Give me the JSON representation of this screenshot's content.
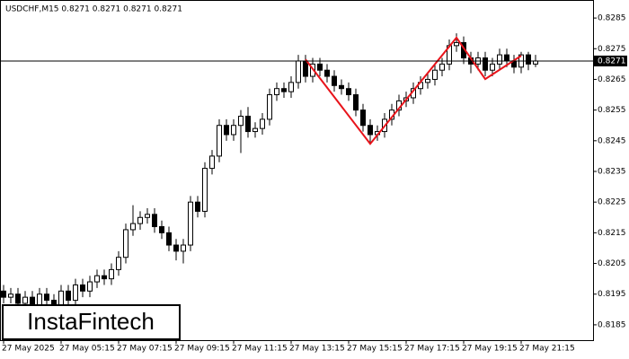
{
  "chart_data": {
    "type": "candlestick",
    "title": "USDCHF,M15  0.8271 0.8271 0.8271 0.8271",
    "watermark": "InstaFintech",
    "categories": [
      "27 May 2025",
      null,
      null,
      null,
      null,
      null,
      null,
      null,
      "27 May 05:15",
      null,
      null,
      null,
      null,
      null,
      null,
      null,
      "27 May 07:15",
      null,
      null,
      null,
      null,
      null,
      null,
      null,
      "27 May 09:15",
      null,
      null,
      null,
      null,
      null,
      null,
      null,
      "27 May 11:15",
      null,
      null,
      null,
      null,
      null,
      null,
      null,
      "27 May 13:15",
      null,
      null,
      null,
      null,
      null,
      null,
      null,
      "27 May 15:15",
      null,
      null,
      null,
      null,
      null,
      null,
      null,
      "27 May 17:15",
      null,
      null,
      null,
      null,
      null,
      null,
      null,
      "27 May 19:15",
      null,
      null,
      null,
      null,
      null,
      null,
      null,
      "27 May 21:15",
      null,
      null
    ],
    "open": [
      0.8196,
      0.8194,
      0.8195,
      0.8192,
      0.8194,
      0.8191,
      0.8195,
      0.8193,
      0.819,
      0.8196,
      0.8193,
      0.8198,
      0.8196,
      0.8199,
      0.8201,
      0.82,
      0.8203,
      0.8207,
      0.8216,
      0.8218,
      0.822,
      0.8221,
      0.8217,
      0.8215,
      0.8211,
      0.8209,
      0.8211,
      0.8225,
      0.8222,
      0.8236,
      0.824,
      0.825,
      0.8247,
      0.825,
      0.8253,
      0.8248,
      0.8249,
      0.8252,
      0.826,
      0.8262,
      0.8261,
      0.8264,
      0.8271,
      0.8266,
      0.827,
      0.8268,
      0.8266,
      0.8263,
      0.8262,
      0.826,
      0.8255,
      0.825,
      0.8247,
      0.8248,
      0.8252,
      0.8255,
      0.8258,
      0.8259,
      0.8262,
      0.8264,
      0.8265,
      0.8268,
      0.827,
      0.8276,
      0.8277,
      0.8272,
      0.827,
      0.8272,
      0.8268,
      0.827,
      0.8273,
      0.8271,
      0.8269,
      0.8273,
      0.827
    ],
    "high": [
      0.8198,
      0.8197,
      0.8197,
      0.8196,
      0.8196,
      0.8197,
      0.8197,
      0.8195,
      0.8198,
      0.8198,
      0.82,
      0.82,
      0.8201,
      0.8203,
      0.8203,
      0.8205,
      0.8209,
      0.8218,
      0.8224,
      0.8222,
      0.8223,
      0.8223,
      0.8219,
      0.8217,
      0.8213,
      0.8213,
      0.8227,
      0.8227,
      0.8238,
      0.8242,
      0.8252,
      0.8252,
      0.8252,
      0.8255,
      0.8256,
      0.8251,
      0.8254,
      0.8262,
      0.8264,
      0.8264,
      0.8266,
      0.8273,
      0.8273,
      0.8272,
      0.8272,
      0.827,
      0.8268,
      0.8265,
      0.8264,
      0.8262,
      0.8257,
      0.8252,
      0.825,
      0.8254,
      0.8257,
      0.826,
      0.8261,
      0.8264,
      0.8266,
      0.8267,
      0.827,
      0.8272,
      0.8278,
      0.828,
      0.8279,
      0.8274,
      0.8274,
      0.8274,
      0.8272,
      0.8275,
      0.8275,
      0.8273,
      0.8274,
      0.8274,
      0.8273
    ],
    "low": [
      0.8192,
      0.8192,
      0.819,
      0.819,
      0.8189,
      0.8189,
      0.8191,
      0.8188,
      0.8188,
      0.8191,
      0.8191,
      0.8194,
      0.8194,
      0.8197,
      0.8198,
      0.8198,
      0.8201,
      0.8205,
      0.8214,
      0.8216,
      0.8218,
      0.8215,
      0.8213,
      0.8209,
      0.8206,
      0.8205,
      0.8209,
      0.822,
      0.822,
      0.8234,
      0.8238,
      0.8245,
      0.8245,
      0.8241,
      0.8246,
      0.8246,
      0.8247,
      0.825,
      0.8258,
      0.8259,
      0.8259,
      0.8262,
      0.8264,
      0.8264,
      0.8266,
      0.8264,
      0.8261,
      0.826,
      0.8258,
      0.8253,
      0.8248,
      0.8244,
      0.8245,
      0.8246,
      0.825,
      0.8253,
      0.8256,
      0.8257,
      0.826,
      0.8262,
      0.8263,
      0.8266,
      0.8268,
      0.8274,
      0.827,
      0.8267,
      0.8268,
      0.8266,
      0.8266,
      0.8268,
      0.8269,
      0.8267,
      0.8267,
      0.8268,
      0.8269
    ],
    "close": [
      0.8194,
      0.8195,
      0.8192,
      0.8194,
      0.8191,
      0.8195,
      0.8193,
      0.819,
      0.8196,
      0.8193,
      0.8198,
      0.8196,
      0.8199,
      0.8201,
      0.82,
      0.8203,
      0.8207,
      0.8216,
      0.8218,
      0.822,
      0.8221,
      0.8217,
      0.8215,
      0.8211,
      0.8209,
      0.8211,
      0.8225,
      0.8222,
      0.8236,
      0.824,
      0.825,
      0.8247,
      0.825,
      0.8253,
      0.8248,
      0.8249,
      0.8252,
      0.826,
      0.8262,
      0.8261,
      0.8264,
      0.8271,
      0.8266,
      0.827,
      0.8268,
      0.8266,
      0.8263,
      0.8262,
      0.826,
      0.8255,
      0.825,
      0.8247,
      0.8248,
      0.8252,
      0.8255,
      0.8258,
      0.8259,
      0.8262,
      0.8264,
      0.8265,
      0.8268,
      0.827,
      0.8276,
      0.8277,
      0.8272,
      0.827,
      0.8272,
      0.8268,
      0.827,
      0.8273,
      0.8271,
      0.8269,
      0.8273,
      0.827,
      0.8271
    ],
    "last_price": 0.8271,
    "pattern": {
      "color": "#e8141b",
      "x": [
        42,
        51,
        63,
        67,
        72
      ],
      "values": [
        0.82715,
        0.8244,
        0.82786,
        0.82651,
        0.82727
      ]
    },
    "ylim": [
      0.818,
      0.829
    ],
    "yticks": [
      0.8185,
      0.8195,
      0.8205,
      0.8215,
      0.8225,
      0.8235,
      0.8245,
      0.8255,
      0.8265,
      0.8275,
      0.8285
    ]
  }
}
